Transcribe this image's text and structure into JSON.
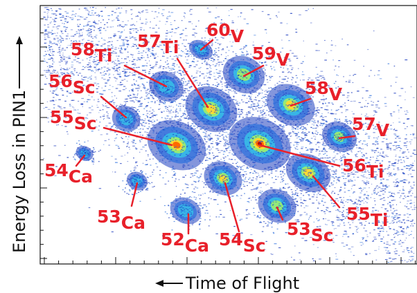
{
  "chart_data": {
    "type": "scatter",
    "subtype": "2d-density (particle identification plot)",
    "xlabel": "Time of Flight",
    "ylabel": "Energy Loss in PIN1",
    "axis_arrows": "both axis labels carry arrows (x: pointing left, y: pointing up)",
    "grid": false,
    "legend": "none",
    "colormap": [
      "#ffffff",
      "#1f3fbf",
      "#2b6fdd",
      "#36c0e8",
      "#9fef6a",
      "#ffd92f",
      "#ff6a00",
      "#c00000"
    ],
    "label_color": "#e8202a",
    "isotopes": [
      {
        "id": "v60",
        "mass": "60",
        "element": "V",
        "peak": 0.3
      },
      {
        "id": "ti58",
        "mass": "58",
        "element": "Ti",
        "peak": 0.45
      },
      {
        "id": "ti57",
        "mass": "57",
        "element": "Ti",
        "peak": 0.7
      },
      {
        "id": "v59",
        "mass": "59",
        "element": "V",
        "peak": 0.5
      },
      {
        "id": "sc56",
        "mass": "56",
        "element": "Sc",
        "peak": 0.4
      },
      {
        "id": "v58",
        "mass": "58",
        "element": "V",
        "peak": 0.75
      },
      {
        "id": "sc55",
        "mass": "55",
        "element": "Sc",
        "peak": 0.85
      },
      {
        "id": "v57",
        "mass": "57",
        "element": "V",
        "peak": 0.55
      },
      {
        "id": "ti56",
        "mass": "56",
        "element": "Ti",
        "peak": 1.0
      },
      {
        "id": "ca54",
        "mass": "54",
        "element": "Ca",
        "peak": 0.2
      },
      {
        "id": "ti55",
        "mass": "55",
        "element": "Ti",
        "peak": 0.75
      },
      {
        "id": "ca53",
        "mass": "53",
        "element": "Ca",
        "peak": 0.3
      },
      {
        "id": "sc54",
        "mass": "54",
        "element": "Sc",
        "peak": 0.7
      },
      {
        "id": "sc53",
        "mass": "53",
        "element": "Sc",
        "peak": 0.6
      },
      {
        "id": "ca52",
        "mass": "52",
        "element": "Ca",
        "peak": 0.4
      }
    ]
  }
}
